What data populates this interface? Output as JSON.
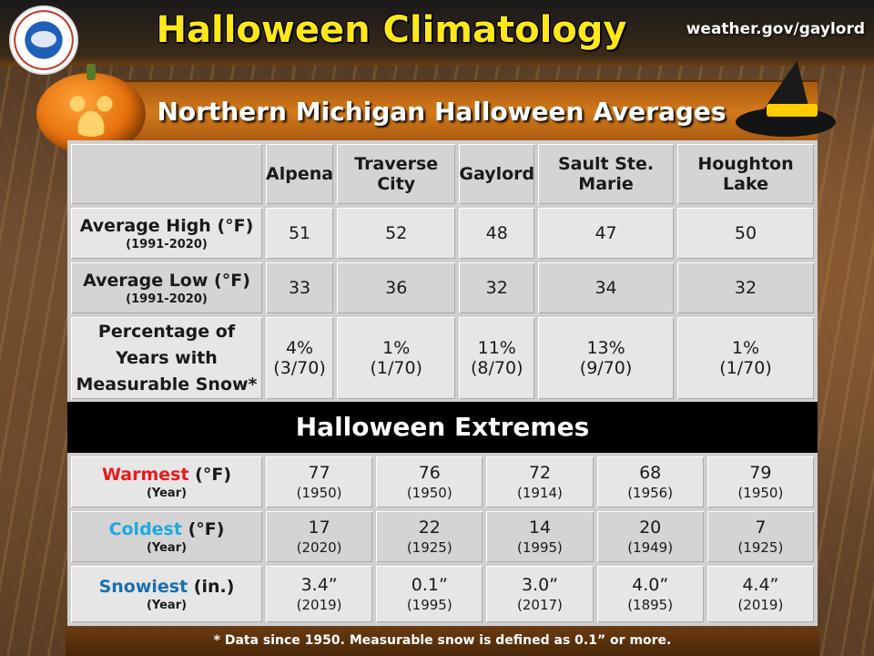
{
  "header": {
    "title": "Halloween Climatology",
    "website": "weather.gov/gaylord"
  },
  "subtitle": "Northern Michigan Halloween Averages",
  "cities": [
    "Alpena",
    "Traverse City",
    "Gaylord",
    "Sault Ste. Marie",
    "Houghton Lake"
  ],
  "averages": {
    "high": {
      "label": "Average High (°F)",
      "period": "(1991-2020)",
      "values": [
        "51",
        "52",
        "48",
        "47",
        "50"
      ]
    },
    "low": {
      "label": "Average Low (°F)",
      "period": "(1991-2020)",
      "values": [
        "33",
        "36",
        "32",
        "34",
        "32"
      ]
    },
    "snow": {
      "label": "Percentage of Years with Measurable Snow*",
      "values": [
        "4%",
        "1%",
        "11%",
        "13%",
        "1%"
      ],
      "counts": [
        "(3/70)",
        "(1/70)",
        "(8/70)",
        "(9/70)",
        "(1/70)"
      ]
    }
  },
  "extremes_title": "Halloween Extremes",
  "extremes": {
    "warmest": {
      "word": "Warmest",
      "unit": " (°F)",
      "sub": "(Year)",
      "values": [
        "77",
        "76",
        "72",
        "68",
        "79"
      ],
      "years": [
        "(1950)",
        "(1950)",
        "(1914)",
        "(1956)",
        "(1950)"
      ]
    },
    "coldest": {
      "word": "Coldest",
      "unit": " (°F)",
      "sub": "(Year)",
      "values": [
        "17",
        "22",
        "14",
        "20",
        "7"
      ],
      "years": [
        "(2020)",
        "(1925)",
        "(1995)",
        "(1949)",
        "(1925)"
      ]
    },
    "snowiest": {
      "word": "Snowiest",
      "unit": " (in.)",
      "sub": "(Year)",
      "values": [
        "3.4”",
        "0.1”",
        "3.0”",
        "4.0”",
        "4.4”"
      ],
      "years": [
        "(2019)",
        "(1995)",
        "(2017)",
        "(1895)",
        "(2019)"
      ]
    }
  },
  "footnote": "* Data since 1950. Measurable snow is defined as 0.1” or more.",
  "colors": {
    "warmest": "#e81b1b",
    "coldest": "#1fa8e0",
    "snowiest": "#1a6fb0",
    "title": "#ffe81a"
  }
}
